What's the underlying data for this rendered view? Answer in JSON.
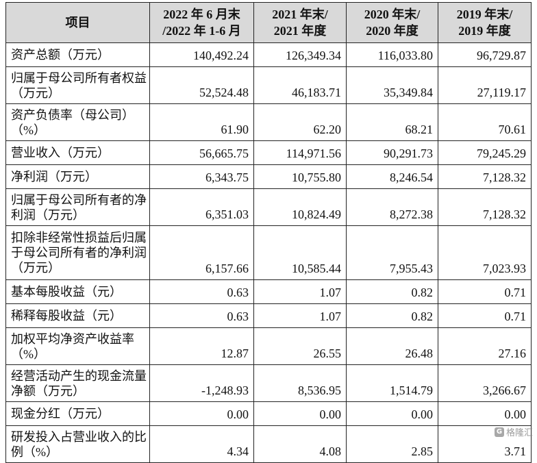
{
  "header": {
    "item": "项目",
    "col1_line1": "2022 年 6 月末",
    "col1_line2": "/2022 年 1-6 月",
    "col2_line1": "2021 年末/",
    "col2_line2": "2021 年度",
    "col3_line1": "2020 年末/",
    "col3_line2": "2020 年度",
    "col4_line1": "2019 年末/",
    "col4_line2": "2019 年度"
  },
  "rows": [
    {
      "label": "资产总额（万元）",
      "values": [
        "140,492.24",
        "126,349.34",
        "116,033.80",
        "96,729.87"
      ]
    },
    {
      "label": "归属于母公司所有者权益（万元）",
      "values": [
        "52,524.48",
        "46,183.71",
        "35,349.84",
        "27,119.17"
      ]
    },
    {
      "label": "资产负债率（母公司）（%）",
      "values": [
        "61.90",
        "62.20",
        "68.21",
        "70.61"
      ]
    },
    {
      "label": "营业收入（万元）",
      "values": [
        "56,665.75",
        "114,971.56",
        "90,291.73",
        "79,245.29"
      ]
    },
    {
      "label": "净利润（万元）",
      "values": [
        "6,343.75",
        "10,755.80",
        "8,246.54",
        "7,128.32"
      ]
    },
    {
      "label": "归属于母公司所有者的净利润（万元）",
      "values": [
        "6,351.03",
        "10,824.49",
        "8,272.38",
        "7,128.32"
      ]
    },
    {
      "label": "扣除非经常性损益后归属于母公司所有者的净利润（万元）",
      "values": [
        "6,157.66",
        "10,585.44",
        "7,955.43",
        "7,023.93"
      ]
    },
    {
      "label": "基本每股收益（元）",
      "values": [
        "0.63",
        "1.07",
        "0.82",
        "0.71"
      ]
    },
    {
      "label": "稀释每股收益（元）",
      "values": [
        "0.63",
        "1.07",
        "0.82",
        "0.71"
      ]
    },
    {
      "label": "加权平均净资产收益率（%）",
      "values": [
        "12.87",
        "26.55",
        "26.48",
        "27.16"
      ]
    },
    {
      "label": "经营活动产生的现金流量净额（万元）",
      "values": [
        "-1,248.93",
        "8,536.95",
        "1,514.79",
        "3,266.67"
      ]
    },
    {
      "label": "现金分红（万元）",
      "values": [
        "0.00",
        "0.00",
        "0.00",
        "0.00"
      ]
    },
    {
      "label": "研发投入占营业收入的比例（%）",
      "values": [
        "4.34",
        "4.08",
        "2.85",
        "3.71"
      ]
    }
  ],
  "watermark": {
    "logo_char": "G",
    "text": "格隆汇"
  }
}
